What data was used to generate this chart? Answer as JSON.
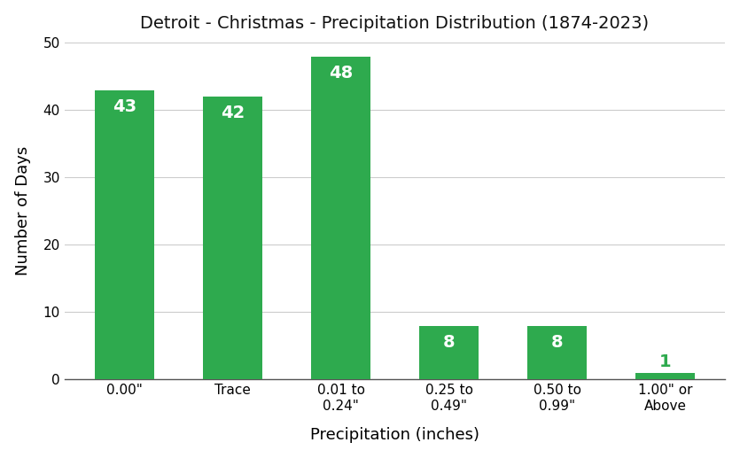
{
  "title": "Detroit - Christmas - Precipitation Distribution (1874-2023)",
  "xlabel": "Precipitation (inches)",
  "ylabel": "Number of Days",
  "categories": [
    "0.00\"",
    "Trace",
    "0.01 to\n0.24\"",
    "0.25 to\n0.49\"",
    "0.50 to\n0.99\"",
    "1.00\" or\nAbove"
  ],
  "values": [
    43,
    42,
    48,
    8,
    8,
    1
  ],
  "bar_color": "#2eaa4e",
  "label_color_main": "#ffffff",
  "label_color_last": "#2eaa4e",
  "ylim": [
    0,
    50
  ],
  "yticks": [
    0,
    10,
    20,
    30,
    40,
    50
  ],
  "grid_color": "#cccccc",
  "background_color": "#ffffff",
  "title_fontsize": 14,
  "axis_label_fontsize": 13,
  "tick_fontsize": 11,
  "bar_label_fontsize": 14,
  "bar_width": 0.55
}
